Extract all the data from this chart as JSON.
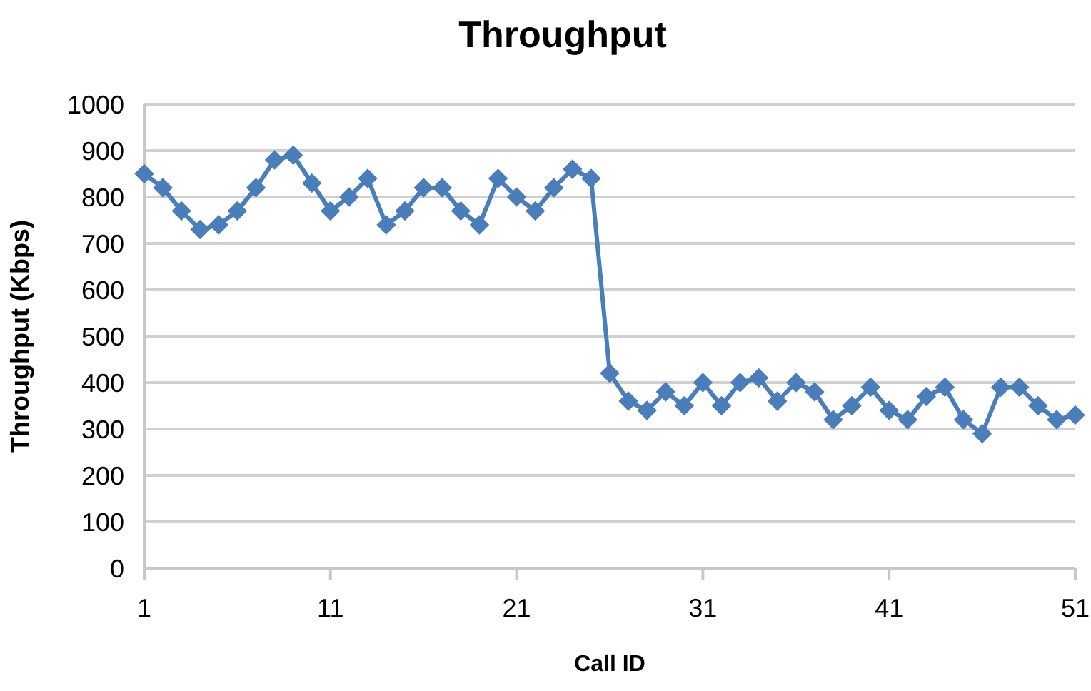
{
  "chart_data": {
    "type": "line",
    "title": "Throughput",
    "xlabel": "Call ID",
    "ylabel": "Throughput (Kbps)",
    "x": [
      1,
      2,
      3,
      4,
      5,
      6,
      7,
      8,
      9,
      10,
      11,
      12,
      13,
      14,
      15,
      16,
      17,
      18,
      19,
      20,
      21,
      22,
      23,
      24,
      25,
      26,
      27,
      28,
      29,
      30,
      31,
      32,
      33,
      34,
      35,
      36,
      37,
      38,
      39,
      40,
      41,
      42,
      43,
      44,
      45,
      46,
      47,
      48,
      49,
      50,
      51
    ],
    "series": [
      {
        "color": "#4a7ebb",
        "values": [
          850,
          820,
          770,
          730,
          740,
          770,
          820,
          880,
          890,
          830,
          770,
          800,
          840,
          740,
          770,
          820,
          820,
          770,
          740,
          840,
          800,
          770,
          820,
          860,
          840,
          420,
          360,
          340,
          380,
          350,
          400,
          350,
          400,
          410,
          360,
          400,
          380,
          320,
          350,
          390,
          340,
          320,
          370,
          390,
          320,
          290,
          390,
          390,
          350,
          320,
          330
        ]
      }
    ],
    "xlim": [
      1,
      51
    ],
    "xticks": [
      1,
      11,
      21,
      31,
      41,
      51
    ],
    "ylim": [
      0,
      1000
    ],
    "yticks": [
      0,
      100,
      200,
      300,
      400,
      500,
      600,
      700,
      800,
      900,
      1000
    ],
    "grid": "y",
    "marker": "diamond",
    "line_style": "solid"
  }
}
